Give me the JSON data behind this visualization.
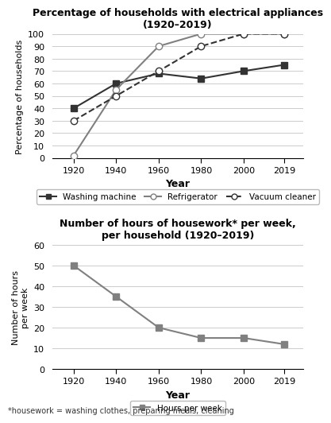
{
  "years": [
    1920,
    1940,
    1960,
    1980,
    2000,
    2019
  ],
  "washing_machine": [
    40,
    60,
    68,
    64,
    70,
    75
  ],
  "refrigerator": [
    2,
    55,
    90,
    100,
    100,
    100
  ],
  "vacuum_cleaner": [
    30,
    50,
    70,
    90,
    100,
    100
  ],
  "hours_per_week": [
    50,
    35,
    20,
    15,
    15,
    12
  ],
  "chart1_title": "Percentage of households with electrical appliances\n(1920–2019)",
  "chart1_ylabel": "Percentage of households",
  "chart1_xlabel": "Year",
  "chart1_ylim": [
    0,
    100
  ],
  "chart1_yticks": [
    0,
    10,
    20,
    30,
    40,
    50,
    60,
    70,
    80,
    90,
    100
  ],
  "chart2_title": "Number of hours of housework* per week,\nper household (1920–2019)",
  "chart2_ylabel": "Number of hours\nper week",
  "chart2_xlabel": "Year",
  "chart2_ylim": [
    0,
    60
  ],
  "chart2_yticks": [
    0,
    10,
    20,
    30,
    40,
    50,
    60
  ],
  "footnote": "*housework = washing clothes, preparing meals, cleaning",
  "line_color": "#808080",
  "dark_color": "#333333",
  "bg_color": "#ffffff"
}
